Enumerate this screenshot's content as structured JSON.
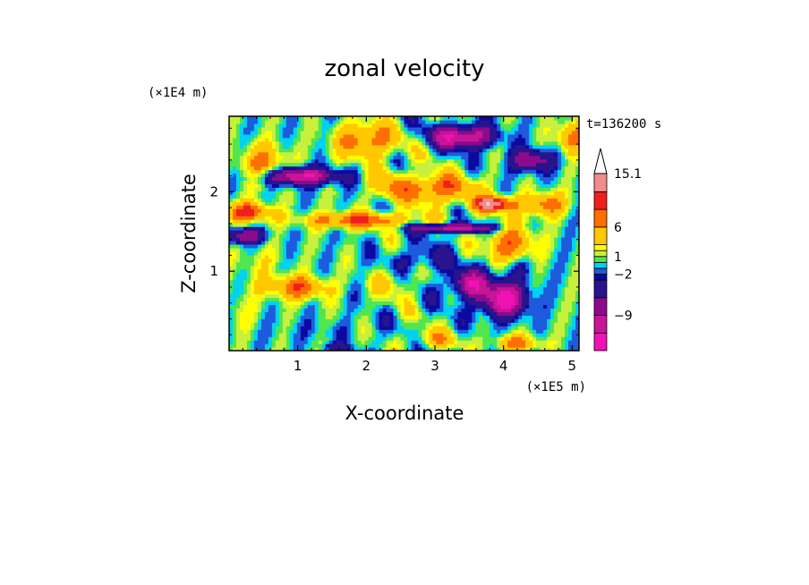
{
  "chart_data": {
    "type": "heatmap",
    "title": "zonal velocity",
    "xlabel": "X-coordinate",
    "ylabel": "Z-coordinate",
    "x_unit": "(×1E5 m)",
    "y_unit": "(×1E4 m)",
    "time_label": "t=136200 s",
    "xlim": [
      0,
      5.1
    ],
    "ylim": [
      0,
      2.95
    ],
    "x_ticks": [
      "1",
      "2",
      "3",
      "4",
      "5"
    ],
    "y_ticks": [
      "1",
      "2"
    ],
    "colorbar": {
      "labels": [
        "15.1",
        "6",
        "1",
        "−2",
        "−9"
      ],
      "levels": [
        -15,
        -12,
        -9,
        -6,
        -3,
        -2,
        -1,
        0,
        1,
        2,
        3,
        6,
        9,
        12,
        15.1
      ],
      "colors": [
        "#f012b4",
        "#c81496",
        "#8c0a8c",
        "#28148c",
        "#0a0aa0",
        "#1e5adc",
        "#00d2f0",
        "#50e650",
        "#c8f03c",
        "#ffff00",
        "#ffc800",
        "#ff6e00",
        "#f01e1e",
        "#f08c8c",
        "#ffc8c8"
      ]
    },
    "features": [
      {
        "x": 0.25,
        "z": 1.75,
        "u": 10,
        "sx": 0.35,
        "sz": 0.12
      },
      {
        "x": 0.5,
        "z": 2.35,
        "u": 7,
        "sx": 0.35,
        "sz": 0.25
      },
      {
        "x": 2.0,
        "z": 2.65,
        "u": 8,
        "sx": 0.45,
        "sz": 0.22
      },
      {
        "x": 1.0,
        "z": 2.2,
        "u": -13,
        "sx": 0.55,
        "sz": 0.11
      },
      {
        "x": 0.2,
        "z": 1.45,
        "u": -9,
        "sx": 0.3,
        "sz": 0.1
      },
      {
        "x": 1.9,
        "z": 1.65,
        "u": 9,
        "sx": 0.8,
        "sz": 0.1
      },
      {
        "x": 3.0,
        "z": 2.05,
        "u": 9,
        "sx": 0.55,
        "sz": 0.18
      },
      {
        "x": 3.85,
        "z": 1.85,
        "u": 14,
        "sx": 0.3,
        "sz": 0.1
      },
      {
        "x": 3.3,
        "z": 1.55,
        "u": -12,
        "sx": 0.6,
        "sz": 0.06
      },
      {
        "x": 4.6,
        "z": 1.85,
        "u": 8,
        "sx": 0.3,
        "sz": 0.15
      },
      {
        "x": 4.1,
        "z": 1.35,
        "u": 8,
        "sx": 0.35,
        "sz": 0.25
      },
      {
        "x": 3.4,
        "z": 2.7,
        "u": -13,
        "sx": 0.45,
        "sz": 0.14
      },
      {
        "x": 4.4,
        "z": 2.4,
        "u": -9,
        "sx": 0.3,
        "sz": 0.14
      },
      {
        "x": 4.2,
        "z": 1.05,
        "u": -3,
        "sx": 0.25,
        "sz": 0.15
      },
      {
        "x": 1.0,
        "z": 0.8,
        "u": 8,
        "sx": 0.45,
        "sz": 0.15
      },
      {
        "x": 4.0,
        "z": 0.65,
        "u": -13,
        "sx": 0.35,
        "sz": 0.22
      },
      {
        "x": 3.5,
        "z": 0.85,
        "u": -10,
        "sx": 0.3,
        "sz": 0.18
      },
      {
        "x": 2.4,
        "z": 0.85,
        "u": 3,
        "sx": 0.3,
        "sz": 0.2
      },
      {
        "x": 1.4,
        "z": 0.25,
        "u": -1,
        "sx": 0.8,
        "sz": 0.15
      },
      {
        "x": 1.6,
        "z": 0.05,
        "u": -4,
        "sx": 0.25,
        "sz": 0.05
      },
      {
        "x": 3.0,
        "z": 0.15,
        "u": 4,
        "sx": 0.4,
        "sz": 0.12
      },
      {
        "x": 4.2,
        "z": 0.1,
        "u": 7,
        "sx": 0.35,
        "sz": 0.1
      },
      {
        "x": 0.4,
        "z": 1.1,
        "u": 2,
        "sx": 0.4,
        "sz": 0.25
      },
      {
        "x": 5.0,
        "z": 2.7,
        "u": 7,
        "sx": 0.25,
        "sz": 0.2
      },
      {
        "x": 2.3,
        "z": 2.1,
        "u": 4,
        "sx": 0.25,
        "sz": 0.2
      },
      {
        "x": 0.15,
        "z": 0.5,
        "u": 2,
        "sx": 0.25,
        "sz": 0.25
      },
      {
        "x": 2.8,
        "z": 1.15,
        "u": -4,
        "sx": 0.4,
        "sz": 0.15
      }
    ]
  }
}
